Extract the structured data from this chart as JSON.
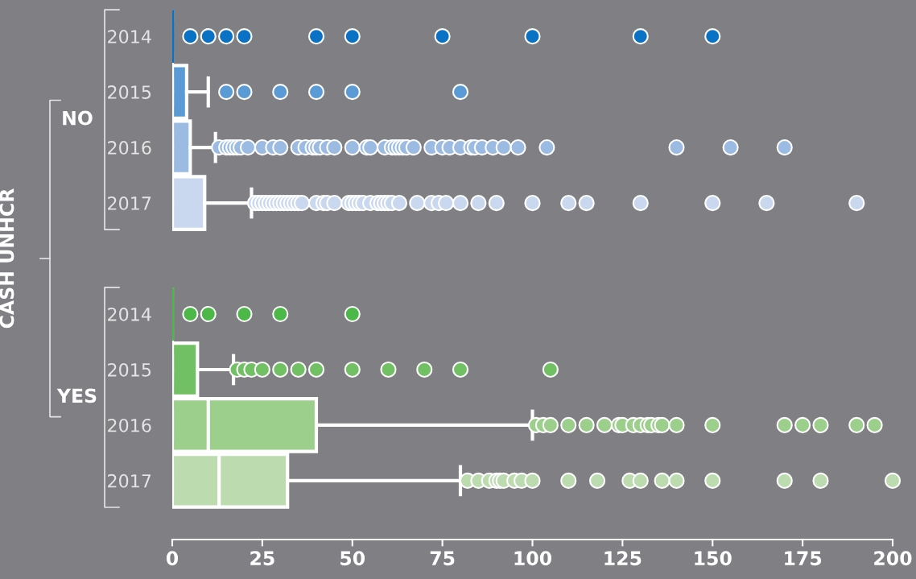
{
  "chart_data": {
    "type": "box",
    "orientation": "horizontal",
    "ylabel": "CASH UNHCR",
    "annotations": [
      "NO",
      "YES"
    ],
    "marker": "circle",
    "categories": [
      "2014",
      "2015",
      "2016",
      "2017",
      "2014",
      "2015",
      "2016",
      "2017"
    ],
    "colors": [
      "#0a72c4",
      "#5b9bd5",
      "#9bbbe3",
      "#c9d8ee",
      "#4cb848",
      "#72c064",
      "#9ccf8c",
      "#bcdcb0"
    ],
    "xlim": [
      0,
      200
    ],
    "xticks": [
      0,
      25,
      50,
      75,
      100,
      125,
      150,
      175,
      200
    ],
    "boxes": [
      {
        "low": 0,
        "q1": 0,
        "median": 0,
        "q3": 0,
        "high": 0,
        "outliers": [
          5,
          10,
          15,
          20,
          40,
          50,
          75,
          100,
          130,
          150
        ]
      },
      {
        "low": 0,
        "q1": 0,
        "median": 0,
        "q3": 4,
        "high": 10,
        "outliers": [
          15,
          20,
          30,
          40,
          50,
          80
        ]
      },
      {
        "low": 0,
        "q1": 0,
        "median": 0,
        "q3": 5,
        "high": 12,
        "outliers": [
          13,
          15,
          16,
          17,
          18,
          19,
          21,
          25,
          28,
          30,
          35,
          37,
          39,
          40,
          41,
          43,
          45,
          50,
          54,
          55,
          59,
          61,
          62,
          63,
          64,
          65,
          67,
          72,
          75,
          77,
          80,
          83,
          84,
          86,
          89,
          92,
          96,
          104,
          140,
          155,
          170
        ]
      },
      {
        "low": 0,
        "q1": 0,
        "median": 0,
        "q3": 9,
        "high": 22,
        "outliers": [
          23,
          24,
          25,
          26,
          27,
          28,
          29,
          30,
          31,
          32,
          33,
          34,
          35,
          36,
          40,
          42,
          43,
          45,
          49,
          50,
          51,
          52,
          53,
          55,
          57,
          58,
          59,
          60,
          61,
          63,
          68,
          72,
          74,
          76,
          80,
          85,
          90,
          100,
          110,
          115,
          130,
          150,
          165,
          190
        ]
      },
      {
        "low": 0,
        "q1": 0,
        "median": 0,
        "q3": 0,
        "high": 0,
        "outliers": [
          5,
          10,
          20,
          30,
          50
        ]
      },
      {
        "low": 0,
        "q1": 0,
        "median": 0,
        "q3": 7,
        "high": 17,
        "outliers": [
          18,
          20,
          22,
          25,
          30,
          35,
          40,
          50,
          60,
          70,
          80,
          105
        ]
      },
      {
        "low": 0,
        "q1": 0,
        "median": 10,
        "q3": 40,
        "high": 100,
        "outliers": [
          101,
          103,
          105,
          110,
          115,
          120,
          124,
          125,
          128,
          130,
          132,
          133,
          135,
          136,
          140,
          150,
          170,
          175,
          180,
          190,
          195
        ]
      },
      {
        "low": 0,
        "q1": 0,
        "median": 13,
        "q3": 32,
        "high": 80,
        "outliers": [
          82,
          85,
          88,
          90,
          91,
          92,
          95,
          97,
          100,
          110,
          118,
          127,
          130,
          136,
          140,
          150,
          170,
          180,
          200
        ]
      }
    ]
  }
}
